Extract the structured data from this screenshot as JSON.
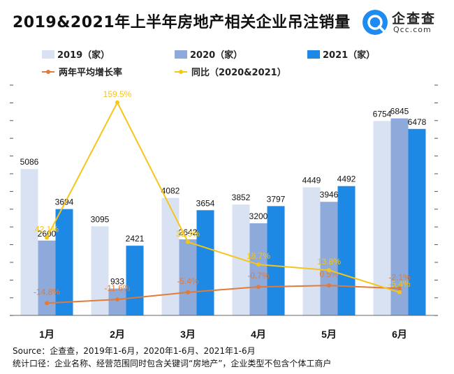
{
  "header": {
    "title": "2019&2021年上半年房地产相关企业吊注销量",
    "logo_name": "企查查",
    "logo_domain": "Qcc.com"
  },
  "colors": {
    "s2019": "#d9e2f3",
    "s2020": "#8eaadb",
    "s2021": "#1e88e5",
    "avg_growth": "#e07b39",
    "yoy": "#f5c518"
  },
  "chart_data": {
    "type": "bar",
    "categories": [
      "1月",
      "2月",
      "3月",
      "4月",
      "5月",
      "6月"
    ],
    "series": [
      {
        "name": "2019（家）",
        "values": [
          5086,
          3095,
          4082,
          3852,
          4449,
          6754
        ]
      },
      {
        "name": "2020（家）",
        "values": [
          2600,
          933,
          2642,
          3200,
          3946,
          6845
        ]
      },
      {
        "name": "2021（家）",
        "values": [
          3694,
          2421,
          3654,
          3797,
          4492,
          6478
        ]
      }
    ],
    "lines": [
      {
        "name": "两年平均增长率",
        "values": [
          -14.8,
          -11.6,
          -5.4,
          -0.7,
          0.5,
          -2.1
        ],
        "labels": [
          "-14.8%",
          "-11.6%",
          "-5.4%",
          "-0.7%",
          "0.5%",
          "-2.1%"
        ]
      },
      {
        "name": "同比（2020&2021）",
        "values": [
          42.1,
          159.5,
          38.3,
          18.7,
          13.8,
          -5.4
        ],
        "labels": [
          "42.1%",
          "159.5%",
          "38.3%",
          "18.7%",
          "13.8%",
          "-5.4%"
        ]
      }
    ],
    "ylim": [
      0,
      8000
    ],
    "grid": false,
    "legend": "top"
  },
  "footer": {
    "source": "Source：企查查，2019年1-6月，2020年1-6月、2021年1-6月",
    "criteria": "统计口径：企业名称、经营范围同时包含关键词“房地产”，企业类型不包含个体工商户"
  }
}
